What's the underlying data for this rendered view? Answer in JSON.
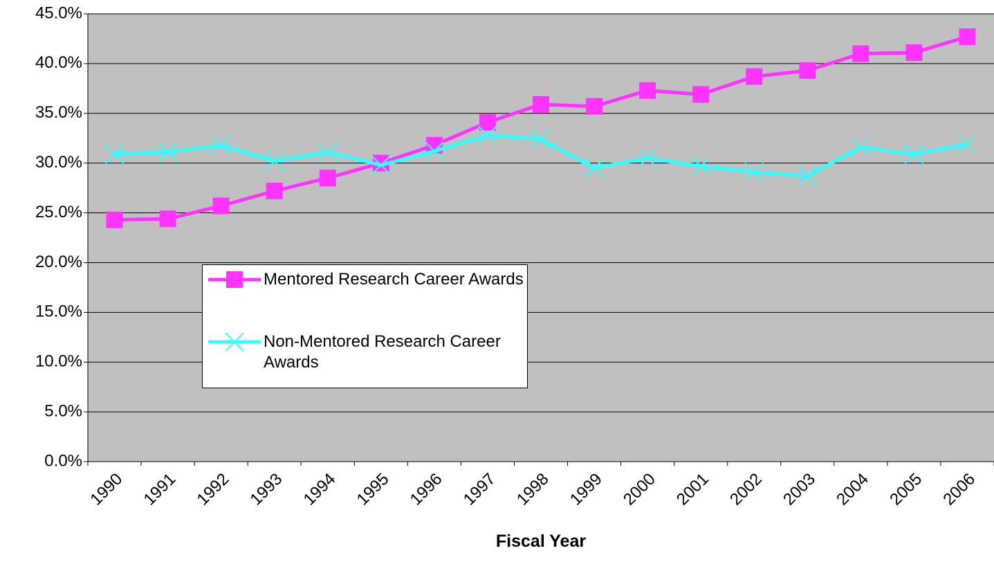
{
  "chart_data": {
    "type": "line",
    "x_label": "Fiscal Year",
    "categories": [
      "1990",
      "1991",
      "1992",
      "1993",
      "1994",
      "1995",
      "1996",
      "1997",
      "1998",
      "1999",
      "2000",
      "2001",
      "2002",
      "2003",
      "2004",
      "2005",
      "2006"
    ],
    "series": [
      {
        "name": "Mentored Research Career Awards",
        "color": "#ff33ff",
        "marker": "square",
        "values": [
          24.3,
          24.4,
          25.7,
          27.2,
          28.5,
          30.0,
          31.8,
          34.1,
          35.9,
          35.7,
          37.3,
          36.9,
          38.7,
          39.3,
          41.0,
          41.1,
          42.7
        ]
      },
      {
        "name": "Non-Mentored Research Career Awards",
        "color": "#33ffff",
        "marker": "x",
        "values": [
          30.9,
          31.1,
          31.8,
          30.2,
          31.1,
          29.8,
          31.2,
          32.8,
          32.4,
          29.5,
          30.5,
          29.7,
          29.1,
          28.7,
          31.6,
          30.9,
          31.9
        ]
      }
    ],
    "ylim": [
      0,
      45
    ],
    "yticks": [
      {
        "value": 0,
        "label": "0.0%"
      },
      {
        "value": 5,
        "label": "5.0%"
      },
      {
        "value": 10,
        "label": "10.0%"
      },
      {
        "value": 15,
        "label": "15.0%"
      },
      {
        "value": 20,
        "label": "20.0%"
      },
      {
        "value": 25,
        "label": "25.0%"
      },
      {
        "value": 30,
        "label": "30.0%"
      },
      {
        "value": 35,
        "label": "35.0%"
      },
      {
        "value": 40,
        "label": "40.0%"
      },
      {
        "value": 45,
        "label": "45.0%"
      }
    ],
    "grid": true
  }
}
